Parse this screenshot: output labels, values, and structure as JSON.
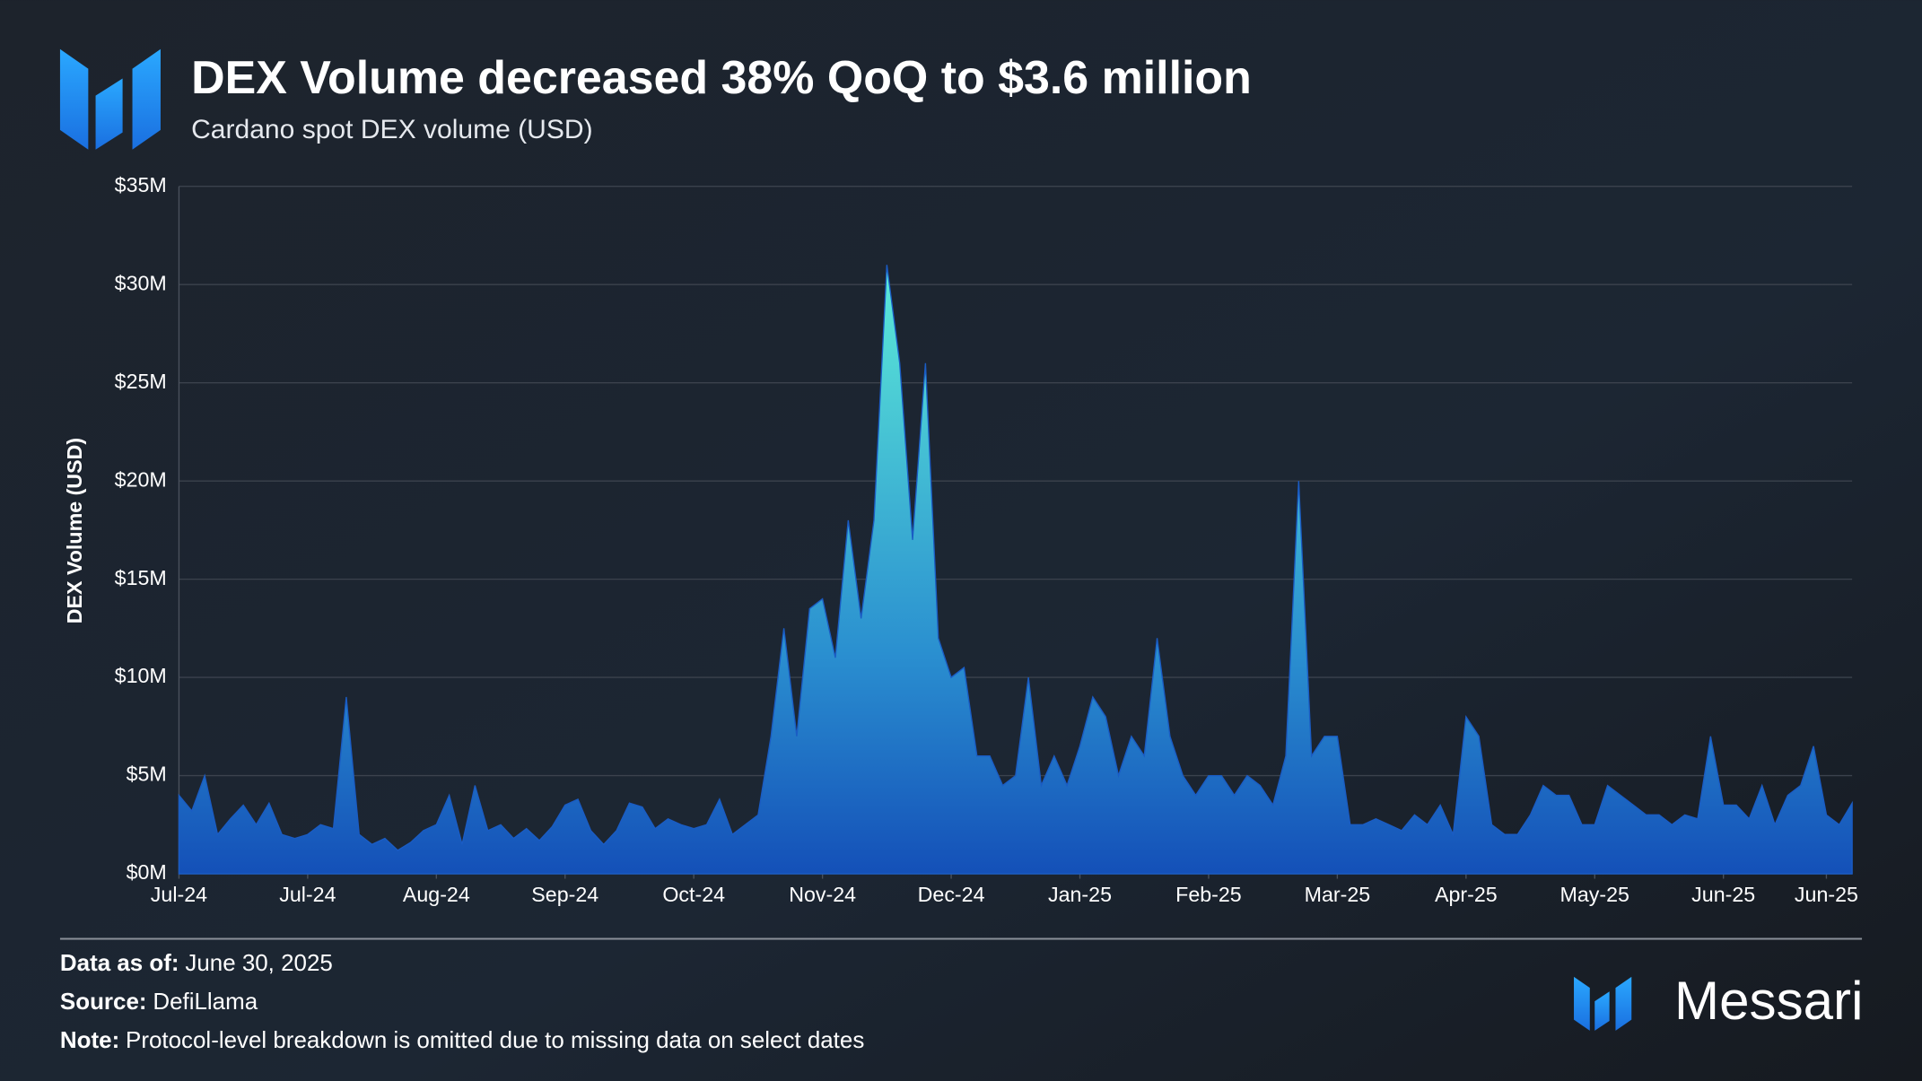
{
  "chart_data": {
    "type": "area",
    "title": "DEX Volume decreased 38% QoQ to $3.6 million",
    "subtitle": "Cardano spot DEX volume (USD)",
    "y_label": "DEX Volume (USD)",
    "color": "#1a5cc4",
    "values": [
      4,
      3.2,
      5,
      2,
      2.8,
      3.5,
      2.5,
      3.6,
      2,
      1.8,
      2.0,
      2.5,
      2.3,
      9,
      2.0,
      1.5,
      1.8,
      1.2,
      1.6,
      2.2,
      2.5,
      4,
      1.5,
      4.5,
      2.2,
      2.5,
      1.8,
      2.3,
      1.7,
      2.4,
      3.5,
      3.8,
      2.2,
      1.5,
      2.2,
      3.6,
      3.4,
      2.3,
      2.8,
      2.5,
      2.3,
      2.5,
      3.8,
      2.0,
      2.5,
      3,
      7,
      12.5,
      7,
      13.5,
      14,
      11,
      18,
      13,
      18,
      31,
      26,
      17,
      26,
      12,
      10,
      10.5,
      6,
      6,
      4.5,
      5,
      10,
      4.5,
      6,
      4.5,
      6.5,
      9,
      8,
      5,
      7,
      6,
      12,
      7,
      5,
      4,
      5,
      5,
      4,
      5,
      4.5,
      3.5,
      6,
      20,
      6,
      7,
      7,
      2.5,
      2.5,
      2.8,
      2.5,
      2.2,
      3,
      2.5,
      3.5,
      2,
      8,
      7,
      2.5,
      2,
      2,
      3,
      4.5,
      4,
      4,
      2.5,
      2.5,
      4.5,
      4,
      3.5,
      3,
      3,
      2.5,
      3,
      2.8,
      7,
      3.5,
      3.5,
      2.8,
      4.5,
      2.5,
      4,
      4.5,
      6.5,
      3,
      2.5,
      3.6
    ],
    "xlim": [
      0,
      130
    ],
    "xticks": [
      {
        "value": 0,
        "label": "Jul-24"
      },
      {
        "value": 10,
        "label": "Jul-24"
      },
      {
        "value": 20,
        "label": "Aug-24"
      },
      {
        "value": 30,
        "label": "Sep-24"
      },
      {
        "value": 40,
        "label": "Oct-24"
      },
      {
        "value": 50,
        "label": "Nov-24"
      },
      {
        "value": 60,
        "label": "Dec-24"
      },
      {
        "value": 70,
        "label": "Jan-25"
      },
      {
        "value": 80,
        "label": "Feb-25"
      },
      {
        "value": 90,
        "label": "Mar-25"
      },
      {
        "value": 100,
        "label": "Apr-25"
      },
      {
        "value": 110,
        "label": "May-25"
      },
      {
        "value": 120,
        "label": "Jun-25"
      },
      {
        "value": 128,
        "label": "Jun-25"
      }
    ],
    "ylim": [
      0,
      35
    ],
    "yticks": [
      {
        "value": 0,
        "label": "$0M"
      },
      {
        "value": 5,
        "label": "$5M"
      },
      {
        "value": 10,
        "label": "$10M"
      },
      {
        "value": 15,
        "label": "$15M"
      },
      {
        "value": 20,
        "label": "$20M"
      },
      {
        "value": 25,
        "label": "$25M"
      },
      {
        "value": 30,
        "label": "$30M"
      },
      {
        "value": 35,
        "label": "$35M"
      }
    ],
    "grid": true
  },
  "footer": [
    {
      "label": "Data as of:",
      "text": "June 30, 2025"
    },
    {
      "label": "Source:",
      "text": "DefiLlama"
    },
    {
      "label": "Note:",
      "text": "Protocol-level breakdown is omitted due to missing data on select dates"
    }
  ],
  "brand": "Messari"
}
